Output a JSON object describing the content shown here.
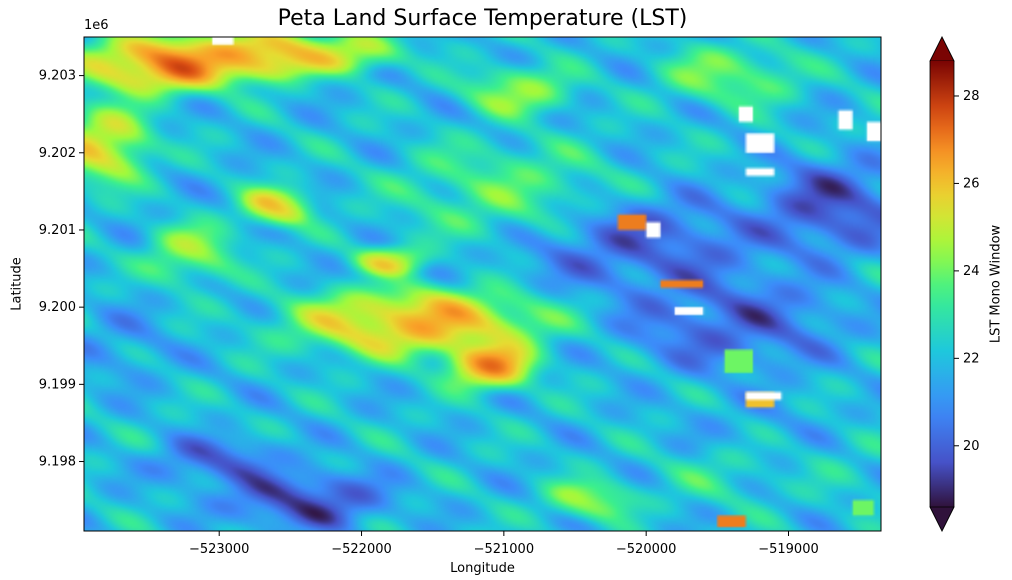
{
  "figure": {
    "title": "Peta Land Surface Temperature (LST)",
    "y_offset_label": "1e6"
  },
  "chart_data": {
    "type": "heatmap",
    "title": "Peta Land Surface Temperature (LST)",
    "xlabel": "Longitude",
    "ylabel": "Latitude",
    "xlim": [
      -523950,
      -518350
    ],
    "ylim": [
      9197100,
      9203500
    ],
    "x_ticks": [
      -523000,
      -522000,
      -521000,
      -520000,
      -519000
    ],
    "x_tick_labels": [
      "−523000",
      "−522000",
      "−521000",
      "−520000",
      "−519000"
    ],
    "y_ticks": [
      9198000,
      9199000,
      9200000,
      9201000,
      9202000,
      9203000
    ],
    "y_tick_labels": [
      "9.198",
      "9.199",
      "9.200",
      "9.201",
      "9.202",
      "9.203"
    ],
    "colorbar": {
      "label": "LST Mono Window",
      "colormap": "turbo",
      "vmin": 18.6,
      "vmax": 28.8,
      "ticks": [
        20,
        22,
        24,
        26,
        28
      ],
      "tick_labels": [
        "20",
        "22",
        "24",
        "26",
        "28"
      ],
      "extend": "both"
    },
    "features": [
      {
        "x": -523400,
        "y": 9203150,
        "value": 28.5,
        "sx": 450,
        "sy": 300
      },
      {
        "x": -522700,
        "y": 9203250,
        "value": 28.0,
        "sx": 350,
        "sy": 250
      },
      {
        "x": -522100,
        "y": 9203300,
        "value": 26.0,
        "sx": 300,
        "sy": 200
      },
      {
        "x": -523800,
        "y": 9202100,
        "value": 26.5,
        "sx": 250,
        "sy": 400
      },
      {
        "x": -522600,
        "y": 9201300,
        "value": 26.5,
        "sx": 200,
        "sy": 200
      },
      {
        "x": -523200,
        "y": 9200700,
        "value": 25.0,
        "sx": 250,
        "sy": 300
      },
      {
        "x": -521600,
        "y": 9199800,
        "value": 27.5,
        "sx": 700,
        "sy": 350
      },
      {
        "x": -521100,
        "y": 9199250,
        "value": 28.0,
        "sx": 250,
        "sy": 250
      },
      {
        "x": -521800,
        "y": 9200600,
        "value": 26.0,
        "sx": 200,
        "sy": 150
      },
      {
        "x": -521000,
        "y": 9201500,
        "value": 24.0,
        "sx": 600,
        "sy": 500
      },
      {
        "x": -520900,
        "y": 9202800,
        "value": 25.0,
        "sx": 300,
        "sy": 250
      },
      {
        "x": -520000,
        "y": 9200800,
        "value": 19.5,
        "sx": 700,
        "sy": 500
      },
      {
        "x": -519400,
        "y": 9199800,
        "value": 19.5,
        "sx": 600,
        "sy": 500
      },
      {
        "x": -518700,
        "y": 9201300,
        "value": 19.0,
        "sx": 400,
        "sy": 500
      },
      {
        "x": -519200,
        "y": 9198600,
        "value": 21.5,
        "sx": 500,
        "sy": 400
      },
      {
        "x": -522400,
        "y": 9197500,
        "value": 18.8,
        "sx": 450,
        "sy": 300
      },
      {
        "x": -523000,
        "y": 9198000,
        "value": 19.5,
        "sx": 350,
        "sy": 250
      },
      {
        "x": -523700,
        "y": 9199500,
        "value": 21.0,
        "sx": 300,
        "sy": 400
      },
      {
        "x": -520400,
        "y": 9197500,
        "value": 25.0,
        "sx": 250,
        "sy": 200
      },
      {
        "x": -519500,
        "y": 9197800,
        "value": 23.0,
        "sx": 350,
        "sy": 300
      },
      {
        "x": -518600,
        "y": 9198000,
        "value": 22.5,
        "sx": 250,
        "sy": 400
      },
      {
        "x": -519400,
        "y": 9203000,
        "value": 24.5,
        "sx": 400,
        "sy": 300
      },
      {
        "x": -518600,
        "y": 9203100,
        "value": 22.0,
        "sx": 250,
        "sy": 250
      }
    ],
    "no_data_value": "white"
  }
}
